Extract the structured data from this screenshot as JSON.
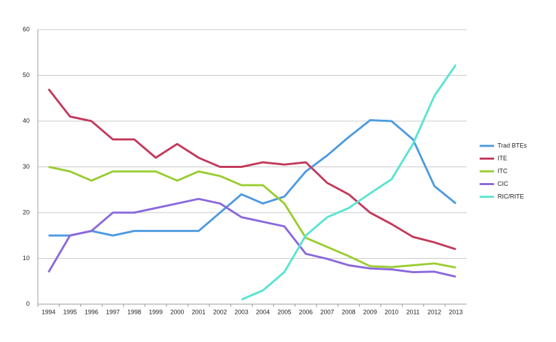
{
  "chart_data": {
    "type": "line",
    "categories": [
      "1994",
      "1995",
      "1996",
      "1997",
      "1998",
      "1999",
      "2000",
      "2001",
      "2002",
      "2003",
      "2004",
      "2005",
      "2006",
      "2007",
      "2008",
      "2009",
      "2010",
      "2011",
      "2012",
      "2013"
    ],
    "series": [
      {
        "name": "Trad BTEs",
        "color": "#4e9be0",
        "values": [
          15,
          15,
          16,
          15,
          16,
          16,
          16,
          16,
          20,
          24,
          22,
          23.5,
          29,
          32.5,
          36.5,
          40.2,
          40,
          36,
          25.8,
          22
        ]
      },
      {
        "name": "ITE",
        "color": "#c23a5c",
        "values": [
          47,
          41,
          40,
          36,
          36,
          32,
          35,
          32,
          30,
          30,
          31,
          30.5,
          31,
          26.5,
          24,
          20,
          17.5,
          14.7,
          13.5,
          12
        ]
      },
      {
        "name": "ITC",
        "color": "#9acd32",
        "values": [
          30,
          29,
          27,
          29,
          29,
          29,
          27,
          29,
          28,
          26,
          26,
          22,
          14.5,
          12.5,
          10.5,
          8.3,
          8.1,
          8.5,
          8.9,
          8
        ]
      },
      {
        "name": "CIC",
        "color": "#8a68dc",
        "values": [
          7,
          15,
          16,
          20,
          20,
          21,
          22,
          23,
          22,
          19,
          18,
          17,
          11,
          9.9,
          8.5,
          7.8,
          7.6,
          7,
          7.1,
          6
        ]
      },
      {
        "name": "RIC/RITE",
        "color": "#5ae3d2",
        "values": [
          null,
          null,
          null,
          null,
          null,
          null,
          null,
          null,
          null,
          1,
          3,
          7,
          15,
          19,
          21,
          24.2,
          27.3,
          35,
          45.5,
          52.3
        ]
      }
    ],
    "ylim": [
      0,
      60
    ],
    "yticks": [
      0,
      10,
      20,
      30,
      40,
      50,
      60
    ],
    "grid": true
  }
}
